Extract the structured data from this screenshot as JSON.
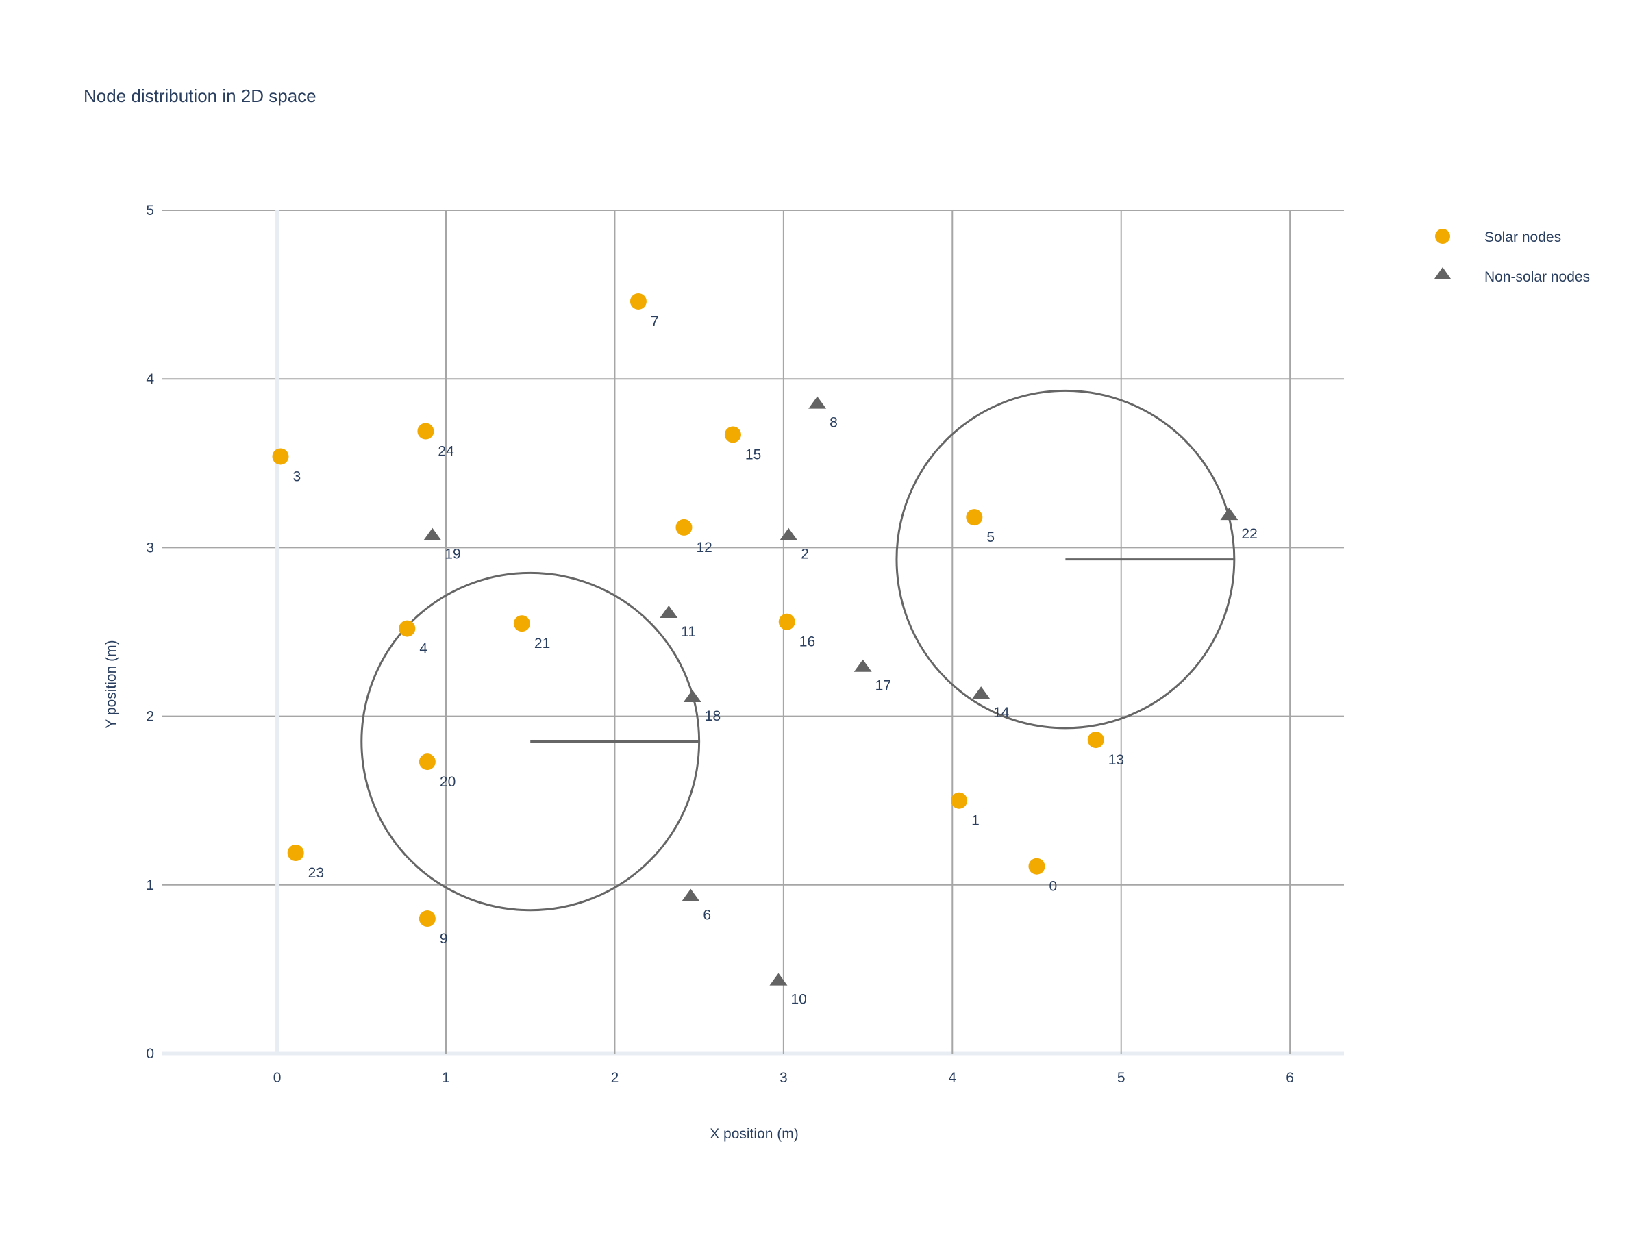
{
  "chart_data": {
    "type": "scatter",
    "title": "Node distribution in 2D space",
    "xlabel": "X position (m)",
    "ylabel": "Y position (m)",
    "xlim": [
      -0.68,
      6.32
    ],
    "ylim": [
      0,
      5
    ],
    "x_ticks": [
      0,
      1,
      2,
      3,
      4,
      5,
      6
    ],
    "y_ticks": [
      0,
      1,
      2,
      3,
      4,
      5
    ],
    "grid": true,
    "legend_position": "top-right",
    "series": [
      {
        "name": "Solar nodes",
        "marker": "circle",
        "color": "#f2a900",
        "points": [
          {
            "label": "0",
            "x": 4.5,
            "y": 1.11
          },
          {
            "label": "1",
            "x": 4.04,
            "y": 1.5
          },
          {
            "label": "3",
            "x": 0.02,
            "y": 3.54
          },
          {
            "label": "4",
            "x": 0.77,
            "y": 2.52
          },
          {
            "label": "5",
            "x": 4.13,
            "y": 3.18
          },
          {
            "label": "7",
            "x": 2.14,
            "y": 4.46
          },
          {
            "label": "9",
            "x": 0.89,
            "y": 0.8
          },
          {
            "label": "12",
            "x": 2.41,
            "y": 3.12
          },
          {
            "label": "13",
            "x": 4.85,
            "y": 1.86
          },
          {
            "label": "15",
            "x": 2.7,
            "y": 3.67
          },
          {
            "label": "16",
            "x": 3.02,
            "y": 2.56
          },
          {
            "label": "20",
            "x": 0.89,
            "y": 1.73
          },
          {
            "label": "21",
            "x": 1.45,
            "y": 2.55
          },
          {
            "label": "23",
            "x": 0.11,
            "y": 1.19
          },
          {
            "label": "24",
            "x": 0.88,
            "y": 3.69
          }
        ]
      },
      {
        "name": "Non-solar nodes",
        "marker": "triangle-up",
        "color": "#636363",
        "points": [
          {
            "label": "2",
            "x": 3.03,
            "y": 3.08
          },
          {
            "label": "6",
            "x": 2.45,
            "y": 0.94
          },
          {
            "label": "8",
            "x": 3.2,
            "y": 3.86
          },
          {
            "label": "10",
            "x": 2.97,
            "y": 0.44
          },
          {
            "label": "11",
            "x": 2.32,
            "y": 2.62
          },
          {
            "label": "14",
            "x": 4.17,
            "y": 2.14
          },
          {
            "label": "17",
            "x": 3.47,
            "y": 2.3
          },
          {
            "label": "18",
            "x": 2.46,
            "y": 2.12
          },
          {
            "label": "19",
            "x": 0.92,
            "y": 3.08
          },
          {
            "label": "22",
            "x": 5.64,
            "y": 3.2
          }
        ]
      }
    ],
    "shapes": [
      {
        "type": "circle",
        "center": [
          1.5,
          1.85
        ],
        "radius": 1.0,
        "color": "#666666"
      },
      {
        "type": "circle",
        "center": [
          4.67,
          2.93
        ],
        "radius": 1.0,
        "color": "#666666"
      }
    ]
  }
}
